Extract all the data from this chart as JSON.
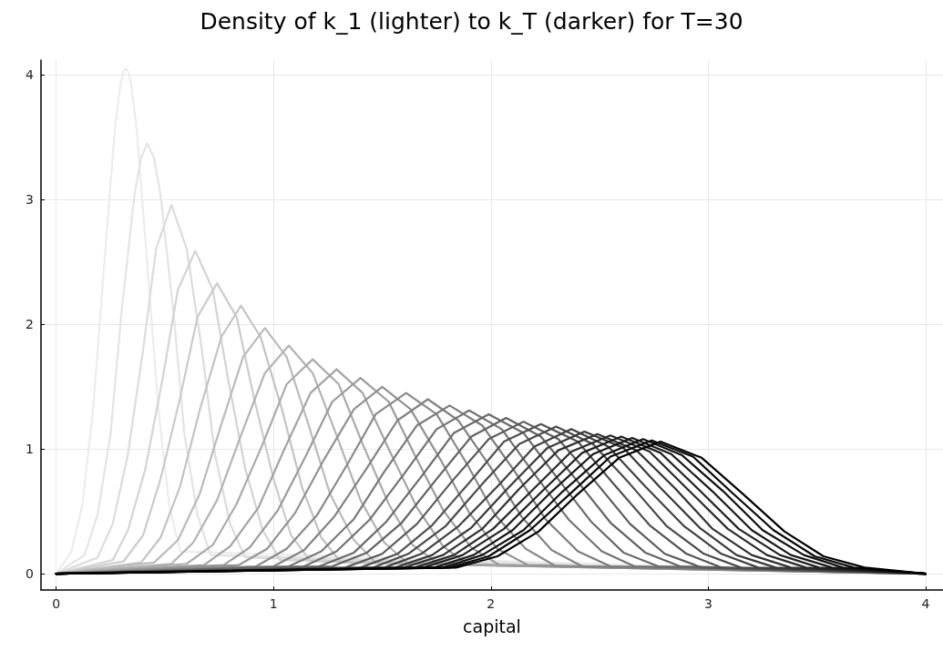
{
  "chart_data": {
    "type": "line",
    "title": "Density of k_1 (lighter) to k_T (darker) for T=30",
    "xlabel": "capital",
    "xlim": [
      -0.07,
      4.08
    ],
    "ylim": [
      -0.13,
      4.12
    ],
    "xticks": [
      0,
      1,
      2,
      3,
      4
    ],
    "yticks": [
      0,
      1,
      2,
      3,
      4
    ],
    "grid": true,
    "marker": "none",
    "line_style": "solid",
    "series": [
      {
        "color": "#ececec",
        "x": [
          0,
          0.07,
          0.12,
          0.17,
          0.22,
          0.27,
          0.295,
          0.31,
          0.32,
          0.33,
          0.345,
          0.37,
          0.42,
          0.47,
          0.52,
          0.57,
          4
        ],
        "values": [
          0,
          0.18,
          0.55,
          1.32,
          2.46,
          3.57,
          3.92,
          4.03,
          4.05,
          4.03,
          3.92,
          3.57,
          2.46,
          1.32,
          0.55,
          0.18,
          0
        ]
      },
      {
        "color": "#e4e4e4",
        "x": [
          0,
          0.13,
          0.19,
          0.25,
          0.3,
          0.36,
          0.391,
          0.42,
          0.449,
          0.48,
          0.54,
          0.59,
          0.65,
          0.71,
          4
        ],
        "values": [
          0,
          0.15,
          0.47,
          1.12,
          2.09,
          3.04,
          3.34,
          3.45,
          3.34,
          3.04,
          2.09,
          1.12,
          0.47,
          0.15,
          0
        ]
      },
      {
        "color": "#dcdcdc",
        "x": [
          0,
          0.19,
          0.26,
          0.33,
          0.4,
          0.46,
          0.53,
          0.6,
          0.67,
          0.73,
          0.8,
          0.87,
          4
        ],
        "values": [
          0,
          0.13,
          0.4,
          0.96,
          1.8,
          2.61,
          2.96,
          2.61,
          1.8,
          0.96,
          0.4,
          0.13,
          0
        ]
      },
      {
        "color": "#d4d4d4",
        "x": [
          0,
          0.26,
          0.33,
          0.41,
          0.49,
          0.56,
          0.64,
          0.72,
          0.79,
          0.87,
          0.95,
          1.03,
          4
        ],
        "values": [
          0,
          0.11,
          0.35,
          0.84,
          1.57,
          2.28,
          2.59,
          2.28,
          1.57,
          0.84,
          0.35,
          0.11,
          0
        ]
      },
      {
        "color": "#cbcbcb",
        "x": [
          0,
          0.31,
          0.4,
          0.48,
          0.57,
          0.65,
          0.74,
          0.83,
          0.91,
          1.0,
          1.08,
          1.17,
          4
        ],
        "values": [
          0,
          0.1,
          0.31,
          0.76,
          1.41,
          2.06,
          2.33,
          2.06,
          1.41,
          0.76,
          0.31,
          0.1,
          0
        ]
      },
      {
        "color": "#c3c3c3",
        "x": [
          0,
          0.39,
          0.48,
          0.57,
          0.66,
          0.76,
          0.85,
          0.94,
          1.04,
          1.13,
          1.22,
          1.31,
          4
        ],
        "values": [
          0,
          0.09,
          0.29,
          0.7,
          1.31,
          1.9,
          2.15,
          1.9,
          1.31,
          0.7,
          0.29,
          0.09,
          0
        ]
      },
      {
        "color": "#bbbbbb",
        "x": [
          0,
          0.45,
          0.56,
          0.66,
          0.76,
          0.86,
          0.96,
          1.06,
          1.16,
          1.26,
          1.37,
          1.47,
          4
        ],
        "values": [
          0,
          0.09,
          0.27,
          0.64,
          1.2,
          1.74,
          1.97,
          1.74,
          1.2,
          0.64,
          0.27,
          0.09,
          0
        ]
      },
      {
        "color": "#b3b3b3",
        "x": [
          0,
          0.53,
          0.63,
          0.74,
          0.85,
          0.96,
          1.07,
          1.18,
          1.29,
          1.4,
          1.51,
          1.62,
          4
        ],
        "values": [
          0,
          0.08,
          0.25,
          0.59,
          1.11,
          1.61,
          1.83,
          1.61,
          1.11,
          0.59,
          0.25,
          0.08,
          0
        ]
      },
      {
        "color": "#ababab",
        "x": [
          0,
          0.6,
          0.72,
          0.83,
          0.95,
          1.06,
          1.18,
          1.3,
          1.41,
          1.53,
          1.64,
          1.76,
          4
        ],
        "values": [
          0,
          0.08,
          0.23,
          0.56,
          1.04,
          1.52,
          1.72,
          1.52,
          1.04,
          0.56,
          0.23,
          0.08,
          0
        ]
      },
      {
        "color": "#a3a3a3",
        "x": [
          0,
          0.68,
          0.8,
          0.93,
          1.05,
          1.17,
          1.29,
          1.41,
          1.53,
          1.66,
          1.78,
          1.9,
          4
        ],
        "values": [
          0,
          0.07,
          0.22,
          0.53,
          1.0,
          1.45,
          1.64,
          1.45,
          1.0,
          0.53,
          0.22,
          0.07,
          0
        ]
      },
      {
        "color": "#9b9b9b",
        "x": [
          0,
          0.77,
          0.89,
          1.02,
          1.15,
          1.27,
          1.4,
          1.53,
          1.65,
          1.78,
          1.91,
          2.04,
          4
        ],
        "values": [
          0,
          0.07,
          0.21,
          0.51,
          0.95,
          1.38,
          1.57,
          1.38,
          0.95,
          0.51,
          0.21,
          0.07,
          0
        ]
      },
      {
        "color": "#929292",
        "x": [
          0,
          0.84,
          0.97,
          1.1,
          1.23,
          1.37,
          1.5,
          1.63,
          1.77,
          1.9,
          2.03,
          2.17,
          4
        ],
        "values": [
          0,
          0.07,
          0.2,
          0.49,
          0.91,
          1.32,
          1.5,
          1.32,
          0.91,
          0.49,
          0.2,
          0.07,
          0
        ]
      },
      {
        "color": "#8a8a8a",
        "x": [
          0,
          0.92,
          1.06,
          1.2,
          1.34,
          1.47,
          1.61,
          1.75,
          1.89,
          2.02,
          2.16,
          2.3,
          4
        ],
        "values": [
          0,
          0.06,
          0.2,
          0.47,
          0.88,
          1.28,
          1.45,
          1.28,
          0.88,
          0.47,
          0.2,
          0.06,
          0
        ]
      },
      {
        "color": "#828282",
        "x": [
          0,
          1.0,
          1.14,
          1.28,
          1.43,
          1.57,
          1.71,
          1.85,
          2.0,
          2.14,
          2.28,
          2.42,
          4
        ],
        "values": [
          0,
          0.06,
          0.19,
          0.46,
          0.85,
          1.23,
          1.4,
          1.23,
          0.85,
          0.46,
          0.19,
          0.06,
          0
        ]
      },
      {
        "color": "#7a7a7a",
        "x": [
          0,
          1.07,
          1.22,
          1.37,
          1.51,
          1.66,
          1.81,
          1.96,
          2.11,
          2.25,
          2.4,
          2.55,
          4
        ],
        "values": [
          0,
          0.06,
          0.18,
          0.44,
          0.82,
          1.19,
          1.35,
          1.19,
          0.82,
          0.44,
          0.18,
          0.06,
          0
        ]
      },
      {
        "color": "#727272",
        "x": [
          0,
          1.14,
          1.29,
          1.44,
          1.6,
          1.75,
          1.9,
          2.05,
          2.2,
          2.36,
          2.51,
          2.66,
          4
        ],
        "values": [
          0,
          0.06,
          0.18,
          0.43,
          0.8,
          1.16,
          1.31,
          1.16,
          0.8,
          0.43,
          0.18,
          0.06,
          0
        ]
      },
      {
        "color": "#6a6a6a",
        "x": [
          0,
          1.21,
          1.37,
          1.52,
          1.68,
          1.83,
          1.99,
          2.15,
          2.3,
          2.46,
          2.61,
          2.77,
          4
        ],
        "values": [
          0,
          0.06,
          0.17,
          0.42,
          0.78,
          1.13,
          1.28,
          1.13,
          0.78,
          0.42,
          0.17,
          0.06,
          0
        ]
      },
      {
        "color": "#626262",
        "x": [
          0,
          1.27,
          1.43,
          1.59,
          1.75,
          1.91,
          2.07,
          2.23,
          2.39,
          2.55,
          2.71,
          2.87,
          4
        ],
        "values": [
          0,
          0.06,
          0.17,
          0.41,
          0.76,
          1.1,
          1.25,
          1.1,
          0.76,
          0.41,
          0.17,
          0.06,
          0
        ]
      },
      {
        "color": "#5a5a5a",
        "x": [
          0,
          1.33,
          1.5,
          1.66,
          1.82,
          1.99,
          2.15,
          2.31,
          2.48,
          2.64,
          2.8,
          2.97,
          4
        ],
        "values": [
          0,
          0.05,
          0.16,
          0.4,
          0.74,
          1.08,
          1.22,
          1.08,
          0.74,
          0.4,
          0.16,
          0.05,
          0
        ]
      },
      {
        "color": "#515151",
        "x": [
          0,
          1.4,
          1.57,
          1.73,
          1.9,
          2.06,
          2.23,
          2.4,
          2.56,
          2.73,
          2.9,
          3.06,
          4
        ],
        "values": [
          0,
          0.05,
          0.16,
          0.39,
          0.73,
          1.06,
          1.2,
          1.06,
          0.73,
          0.39,
          0.16,
          0.05,
          0
        ]
      },
      {
        "color": "#494949",
        "x": [
          0,
          1.46,
          1.62,
          1.79,
          1.96,
          2.13,
          2.3,
          2.47,
          2.64,
          2.81,
          2.98,
          3.15,
          4
        ],
        "values": [
          0,
          0.05,
          0.16,
          0.38,
          0.72,
          1.04,
          1.18,
          1.04,
          0.72,
          0.38,
          0.16,
          0.05,
          0
        ]
      },
      {
        "color": "#414141",
        "x": [
          0,
          1.51,
          1.68,
          1.85,
          2.03,
          2.2,
          2.37,
          2.54,
          2.71,
          2.89,
          3.06,
          3.23,
          4
        ],
        "values": [
          0,
          0.05,
          0.16,
          0.38,
          0.7,
          1.02,
          1.16,
          1.02,
          0.7,
          0.38,
          0.16,
          0.05,
          0
        ]
      },
      {
        "color": "#393939",
        "x": [
          0,
          1.56,
          1.73,
          1.91,
          2.08,
          2.26,
          2.43,
          2.61,
          2.78,
          2.96,
          3.13,
          3.31,
          4
        ],
        "values": [
          0,
          0.05,
          0.15,
          0.37,
          0.69,
          1.01,
          1.14,
          1.01,
          0.69,
          0.37,
          0.15,
          0.05,
          0
        ]
      },
      {
        "color": "#313131",
        "x": [
          0,
          1.6,
          1.78,
          1.96,
          2.13,
          2.31,
          2.49,
          2.67,
          2.85,
          3.02,
          3.2,
          3.38,
          4
        ],
        "values": [
          0,
          0.05,
          0.15,
          0.36,
          0.68,
          0.99,
          1.12,
          0.99,
          0.68,
          0.36,
          0.15,
          0.05,
          0
        ]
      },
      {
        "color": "#292929",
        "x": [
          0,
          1.65,
          1.83,
          2.01,
          2.19,
          2.37,
          2.55,
          2.73,
          2.91,
          3.09,
          3.27,
          3.45,
          4
        ],
        "values": [
          0,
          0.05,
          0.15,
          0.36,
          0.67,
          0.98,
          1.11,
          0.98,
          0.67,
          0.36,
          0.15,
          0.05,
          0
        ]
      },
      {
        "color": "#212121",
        "x": [
          0,
          1.69,
          1.87,
          2.06,
          2.24,
          2.42,
          2.6,
          2.78,
          2.96,
          3.14,
          3.33,
          3.51,
          4
        ],
        "values": [
          0,
          0.05,
          0.15,
          0.36,
          0.67,
          0.97,
          1.1,
          0.97,
          0.67,
          0.36,
          0.15,
          0.05,
          0
        ]
      },
      {
        "color": "#181818",
        "x": [
          0,
          1.74,
          1.92,
          2.1,
          2.28,
          2.47,
          2.65,
          2.83,
          3.02,
          3.2,
          3.38,
          3.57,
          4
        ],
        "values": [
          0,
          0.05,
          0.15,
          0.35,
          0.66,
          0.96,
          1.09,
          0.96,
          0.66,
          0.35,
          0.15,
          0.05,
          0
        ]
      },
      {
        "color": "#101010",
        "x": [
          0,
          1.78,
          1.96,
          2.15,
          2.33,
          2.52,
          2.7,
          2.88,
          3.07,
          3.25,
          3.44,
          3.62,
          4
        ],
        "values": [
          0,
          0.05,
          0.15,
          0.35,
          0.66,
          0.95,
          1.08,
          0.95,
          0.66,
          0.35,
          0.15,
          0.05,
          0
        ]
      },
      {
        "color": "#080808",
        "x": [
          0,
          1.81,
          1.99,
          2.18,
          2.37,
          2.55,
          2.74,
          2.93,
          3.11,
          3.3,
          3.49,
          3.67,
          4
        ],
        "values": [
          0,
          0.05,
          0.14,
          0.35,
          0.65,
          0.94,
          1.07,
          0.94,
          0.65,
          0.35,
          0.14,
          0.05,
          0
        ]
      },
      {
        "color": "#000000",
        "x": [
          0,
          1.84,
          2.03,
          2.22,
          2.4,
          2.59,
          2.78,
          2.97,
          3.16,
          3.35,
          3.53,
          3.72,
          4
        ],
        "values": [
          0,
          0.05,
          0.14,
          0.34,
          0.64,
          0.93,
          1.06,
          0.93,
          0.64,
          0.34,
          0.14,
          0.05,
          0
        ]
      }
    ]
  }
}
